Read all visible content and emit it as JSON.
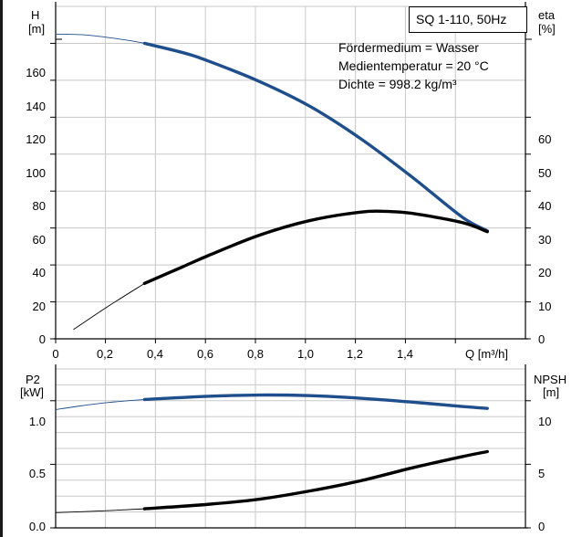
{
  "chart_data": [
    {
      "type": "line",
      "title": "SQ 1-110, 50Hz",
      "annotations": [
        "Fördermedium = Wasser",
        "Medientemperatur = 20 °C",
        "Dichte = 998.2 kg/m³"
      ],
      "xlabel": "Q [m³/h]",
      "xlim": [
        0,
        1.85
      ],
      "x_ticks": [
        "0",
        "0,2",
        "0,4",
        "0,6",
        "0,8",
        "1,0",
        "1,2",
        "1,4"
      ],
      "y_left_label": [
        "H",
        "[m]"
      ],
      "ylim_left": [
        0,
        180
      ],
      "y_left_ticks": [
        "0",
        "20",
        "40",
        "60",
        "80",
        "100",
        "120",
        "140",
        "160"
      ],
      "y_right_label": [
        "eta",
        "[%]"
      ],
      "ylim_right": [
        0,
        90
      ],
      "y_right_ticks": [
        "0",
        "10",
        "20",
        "30",
        "40",
        "50",
        "60"
      ],
      "grid": true,
      "series": [
        {
          "axis": "left",
          "color": "#1f4e8c",
          "points": [
            [
              0,
              165
            ],
            [
              0.1,
              164.7
            ],
            [
              0.2,
              163.3
            ],
            [
              0.3,
              161.3
            ],
            [
              0.35,
              160
            ],
            [
              0.5,
              155
            ],
            [
              0.6,
              150.5
            ],
            [
              0.8,
              139.5
            ],
            [
              1.0,
              126
            ],
            [
              1.2,
              108.5
            ],
            [
              1.4,
              88
            ],
            [
              1.6,
              66
            ],
            [
              1.7,
              58.5
            ]
          ],
          "thick_from_x": 0.35
        },
        {
          "axis": "right",
          "color": "#000000",
          "points": [
            [
              0.07,
              2.5
            ],
            [
              0.2,
              8.5
            ],
            [
              0.35,
              15
            ],
            [
              0.5,
              19.5
            ],
            [
              0.6,
              22.5
            ],
            [
              0.8,
              28
            ],
            [
              1.0,
              32
            ],
            [
              1.2,
              34.3
            ],
            [
              1.3,
              34.5
            ],
            [
              1.4,
              34
            ],
            [
              1.6,
              31.5
            ],
            [
              1.7,
              29
            ]
          ],
          "thick_from_x": 0.35
        }
      ]
    },
    {
      "type": "line",
      "xlim": [
        0,
        1.85
      ],
      "y_left_label": [
        "P2",
        "[kW]"
      ],
      "ylim_left": [
        0,
        1.25
      ],
      "y_left_ticks": [
        "0.0",
        "0.5",
        "1.0"
      ],
      "y_right_label": [
        "NPSH",
        "[m]"
      ],
      "ylim_right": [
        0,
        12.5
      ],
      "y_right_ticks": [
        "0",
        "5",
        "10"
      ],
      "grid": true,
      "series": [
        {
          "axis": "left",
          "color": "#1f4e8c",
          "points": [
            [
              0,
              0.93
            ],
            [
              0.1,
              0.96
            ],
            [
              0.2,
              0.985
            ],
            [
              0.35,
              1.01
            ],
            [
              0.6,
              1.035
            ],
            [
              0.8,
              1.045
            ],
            [
              1.0,
              1.04
            ],
            [
              1.2,
              1.02
            ],
            [
              1.4,
              0.99
            ],
            [
              1.6,
              0.955
            ],
            [
              1.7,
              0.94
            ]
          ],
          "thick_from_x": 0.35
        },
        {
          "axis": "right",
          "color": "#000000",
          "points": [
            [
              0,
              1.2
            ],
            [
              0.2,
              1.35
            ],
            [
              0.35,
              1.5
            ],
            [
              0.6,
              1.85
            ],
            [
              0.8,
              2.25
            ],
            [
              1.0,
              2.9
            ],
            [
              1.2,
              3.7
            ],
            [
              1.4,
              4.7
            ],
            [
              1.6,
              5.6
            ],
            [
              1.7,
              6.0
            ]
          ],
          "thick_from_x": 0.35
        }
      ]
    }
  ]
}
